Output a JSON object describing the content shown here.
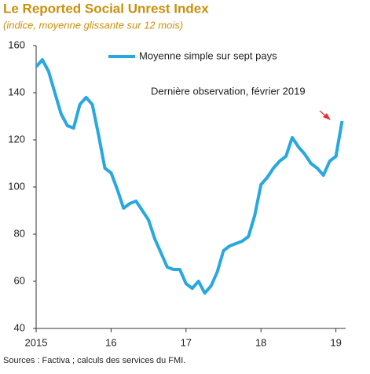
{
  "chart_data": {
    "type": "line",
    "title": "Le Reported Social Unrest Index",
    "subtitle": "(indice, moyenne glissante sur 12 mois)",
    "annotation": "Dernière observation,  février 2019",
    "source": "Sources : Factiva ; calculs des services du FMI.",
    "x": [
      2015,
      2015.083,
      2015.167,
      2015.25,
      2015.333,
      2015.417,
      2015.5,
      2015.583,
      2015.667,
      2015.75,
      2015.833,
      2015.917,
      2016,
      2016.083,
      2016.167,
      2016.25,
      2016.333,
      2016.417,
      2016.5,
      2016.583,
      2016.667,
      2016.75,
      2016.833,
      2016.917,
      2017,
      2017.083,
      2017.167,
      2017.25,
      2017.333,
      2017.417,
      2017.5,
      2017.583,
      2017.667,
      2017.75,
      2017.833,
      2017.917,
      2018,
      2018.083,
      2018.167,
      2018.25,
      2018.333,
      2018.417,
      2018.5,
      2018.583,
      2018.667,
      2018.75,
      2018.833,
      2018.917,
      2019,
      2019.083
    ],
    "series": [
      {
        "name": "Moyenne simple sur sept pays",
        "color": "#29a8e0",
        "values": [
          151,
          154,
          149,
          140,
          131,
          126,
          125,
          135,
          138,
          135,
          122,
          108,
          106,
          99,
          91,
          93,
          94,
          90,
          86,
          78,
          72,
          66,
          65,
          65,
          59,
          57,
          60,
          55,
          58,
          64,
          73,
          75,
          76,
          77,
          79,
          88,
          101,
          104,
          108,
          111,
          113,
          121,
          117,
          114,
          110,
          108,
          105,
          111,
          113,
          128
        ]
      }
    ],
    "xlim": [
      2015,
      2019.13
    ],
    "xticks": [
      {
        "value": 2015,
        "label": "2015"
      },
      {
        "value": 2016,
        "label": "16"
      },
      {
        "value": 2017,
        "label": "17"
      },
      {
        "value": 2018,
        "label": "18"
      },
      {
        "value": 2019,
        "label": "19"
      }
    ],
    "ylim": [
      40,
      160
    ],
    "yticks": [
      40,
      60,
      80,
      100,
      120,
      140,
      160
    ],
    "grid": false
  }
}
